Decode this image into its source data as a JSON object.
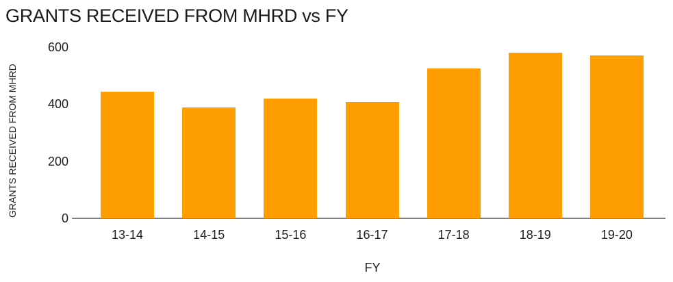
{
  "chart_data": {
    "type": "bar",
    "title": "GRANTS RECEIVED FROM MHRD vs FY",
    "xlabel": "FY",
    "ylabel": "GRANTS RECEIVED FROM MHRD",
    "categories": [
      "13-14",
      "14-15",
      "15-16",
      "16-17",
      "17-18",
      "18-19",
      "19-20"
    ],
    "values": [
      445,
      390,
      420,
      407,
      525,
      580,
      572
    ],
    "ylim": [
      0,
      600
    ],
    "yticks": [
      0,
      200,
      400,
      600
    ],
    "grid": false,
    "legend_position": "none",
    "colors": {
      "bar": "#FF9E00",
      "axis_line": "#808080",
      "text": "#1f1f1f"
    }
  }
}
